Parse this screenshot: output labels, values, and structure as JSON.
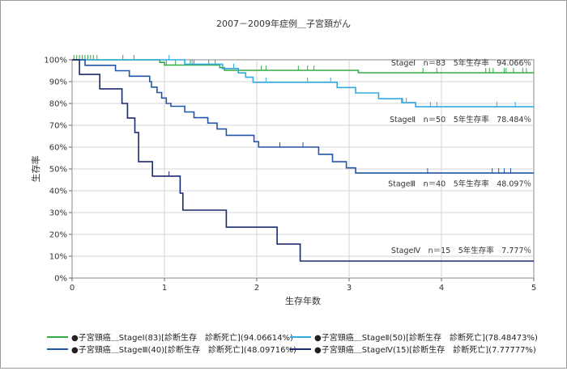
{
  "chart_data": {
    "type": "line",
    "title": "2007－2009年症例＿子宮頚がん",
    "xlabel": "生存年数",
    "ylabel": "生存率",
    "xlim": [
      0,
      5
    ],
    "ylim": [
      0,
      100
    ],
    "x_ticks": [
      0,
      1,
      2,
      3,
      4,
      5
    ],
    "y_ticks": [
      "0%",
      "10%",
      "20%",
      "30%",
      "40%",
      "50%",
      "60%",
      "70%",
      "80%",
      "90%",
      "100%"
    ],
    "grid": true,
    "series": [
      {
        "name": "●子宮頸癌＿StageⅠ(83)[診断生存　診断死亡](94.06614%)",
        "color": "#33aa44",
        "annotation": "StageⅠ　n＝83　5年生存率　94.066％",
        "points": [
          [
            0,
            100
          ],
          [
            0.9,
            100
          ],
          [
            0.95,
            98.8
          ],
          [
            1.0,
            97.6
          ],
          [
            1.6,
            96.4
          ],
          [
            1.65,
            95.2
          ],
          [
            3.05,
            95.2
          ],
          [
            3.1,
            94.07
          ],
          [
            5,
            94.07
          ]
        ],
        "censor": [
          0.02,
          0.05,
          0.08,
          0.11,
          0.14,
          0.17,
          0.2,
          0.23,
          0.27,
          0.55,
          0.67,
          1.02,
          1.12,
          1.28,
          1.32,
          1.48,
          1.55,
          2.05,
          2.1,
          2.45,
          2.55,
          2.62,
          3.8,
          3.95,
          4.48,
          4.52,
          4.56,
          4.68,
          4.7,
          4.78,
          4.88,
          4.92
        ]
      },
      {
        "name": "●子宮頸癌＿StageⅡ(50)[診断生存　診断死亡](78.48473%)",
        "color": "#33aadd",
        "annotation": "StageⅡ　n＝50　5年生存率　78.484％",
        "points": [
          [
            0,
            100
          ],
          [
            1.2,
            100
          ],
          [
            1.22,
            98
          ],
          [
            1.6,
            98
          ],
          [
            1.63,
            96
          ],
          [
            1.78,
            96
          ],
          [
            1.8,
            94
          ],
          [
            1.86,
            94
          ],
          [
            1.88,
            92
          ],
          [
            1.94,
            92
          ],
          [
            1.96,
            89.7
          ],
          [
            2.85,
            89.7
          ],
          [
            2.87,
            87.3
          ],
          [
            3.05,
            87.3
          ],
          [
            3.07,
            84.8
          ],
          [
            3.3,
            84.8
          ],
          [
            3.32,
            82.2
          ],
          [
            3.55,
            82.2
          ],
          [
            3.57,
            80.4
          ],
          [
            3.7,
            80.4
          ],
          [
            3.72,
            78.48
          ],
          [
            5,
            78.48
          ]
        ],
        "censor": [
          1.05,
          1.3,
          1.75,
          2.1,
          2.55,
          2.8,
          3.58,
          3.62,
          3.88,
          3.95,
          4.6,
          4.8
        ]
      },
      {
        "name": "●子宮頸癌＿StageⅢ(40)[診断生存　診断死亡](48.09716%)",
        "color": "#2255aa",
        "annotation": "StageⅢ　n＝40　5年生存率　48.097％",
        "points": [
          [
            0,
            100
          ],
          [
            0.12,
            100
          ],
          [
            0.14,
            97.5
          ],
          [
            0.45,
            97.5
          ],
          [
            0.47,
            95
          ],
          [
            0.6,
            95
          ],
          [
            0.62,
            92.5
          ],
          [
            0.82,
            92.5
          ],
          [
            0.84,
            90
          ],
          [
            0.85,
            90
          ],
          [
            0.86,
            87.5
          ],
          [
            0.9,
            87.5
          ],
          [
            0.92,
            85
          ],
          [
            0.95,
            85
          ],
          [
            0.97,
            82.5
          ],
          [
            1.0,
            82.5
          ],
          [
            1.02,
            80
          ],
          [
            1.05,
            80
          ],
          [
            1.07,
            78.7
          ],
          [
            1.2,
            78.7
          ],
          [
            1.22,
            76.1
          ],
          [
            1.3,
            76.1
          ],
          [
            1.32,
            73.5
          ],
          [
            1.45,
            73.5
          ],
          [
            1.47,
            71
          ],
          [
            1.55,
            71
          ],
          [
            1.57,
            68.3
          ],
          [
            1.65,
            68.3
          ],
          [
            1.67,
            65.4
          ],
          [
            1.95,
            65.4
          ],
          [
            1.97,
            62.5
          ],
          [
            2.0,
            62.5
          ],
          [
            2.02,
            60
          ],
          [
            2.65,
            60
          ],
          [
            2.67,
            56.7
          ],
          [
            2.8,
            56.7
          ],
          [
            2.82,
            53.3
          ],
          [
            2.95,
            53.3
          ],
          [
            2.97,
            50.5
          ],
          [
            3.05,
            50.5
          ],
          [
            3.07,
            48.1
          ],
          [
            5,
            48.1
          ]
        ],
        "censor": [
          2.25,
          2.5,
          3.85,
          4.55,
          4.62,
          4.68,
          4.75
        ]
      },
      {
        "name": "●子宮頸癌＿StageⅣ(15)[診断生存　診断死亡](7.77777%)",
        "color": "#1a2a6e",
        "annotation": "StageⅣ　n＝15　5年生存率　7.777％",
        "points": [
          [
            0,
            100
          ],
          [
            0.07,
            100
          ],
          [
            0.08,
            93.3
          ],
          [
            0.28,
            93.3
          ],
          [
            0.3,
            86.7
          ],
          [
            0.52,
            86.7
          ],
          [
            0.54,
            80
          ],
          [
            0.58,
            80
          ],
          [
            0.6,
            73.3
          ],
          [
            0.66,
            73.3
          ],
          [
            0.68,
            66.7
          ],
          [
            0.7,
            66.7
          ],
          [
            0.72,
            53.3
          ],
          [
            0.85,
            53.3
          ],
          [
            0.87,
            46.7
          ],
          [
            1.15,
            46.7
          ],
          [
            1.17,
            38.9
          ],
          [
            1.18,
            38.9
          ],
          [
            1.2,
            31.1
          ],
          [
            1.65,
            31.1
          ],
          [
            1.67,
            23.3
          ],
          [
            2.2,
            23.3
          ],
          [
            2.22,
            15.6
          ],
          [
            2.45,
            15.6
          ],
          [
            2.47,
            7.78
          ],
          [
            5,
            7.78
          ]
        ],
        "censor": [
          1.05
        ]
      }
    ]
  }
}
